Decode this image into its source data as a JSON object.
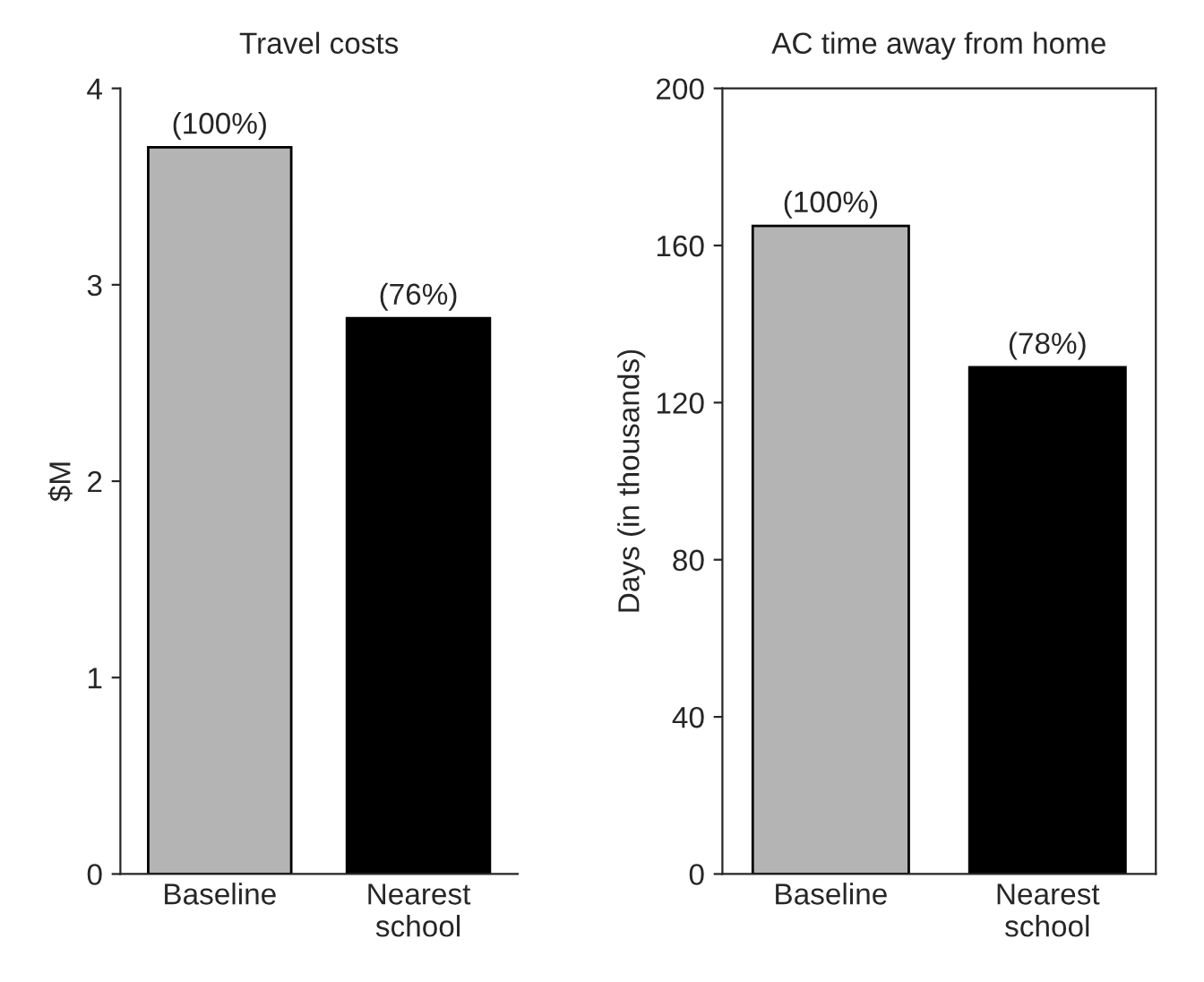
{
  "chart_data": [
    {
      "type": "bar",
      "title": "Travel costs",
      "ylabel": "$M",
      "categories": [
        "Baseline",
        "Nearest\nschool"
      ],
      "values": [
        3.7,
        2.83
      ],
      "colors": [
        "#b4b4b4",
        "#000000"
      ],
      "annotations": [
        {
          "text": "(100%)",
          "x": "Baseline",
          "y": 3.7
        },
        {
          "text": "(76%)",
          "x": "Nearest\nschool",
          "y": 2.83
        }
      ],
      "ylim": [
        0,
        4
      ],
      "yticks": [
        0,
        1,
        2,
        3,
        4
      ],
      "grid": false,
      "legend": false
    },
    {
      "type": "bar",
      "title": "AC time away from home",
      "ylabel": "Days (in thousands)",
      "categories": [
        "Baseline",
        "Nearest\nschool"
      ],
      "values": [
        165,
        129
      ],
      "colors": [
        "#b4b4b4",
        "#000000"
      ],
      "annotations": [
        {
          "text": "(100%)",
          "x": "Baseline",
          "y": 165
        },
        {
          "text": "(78%)",
          "x": "Nearest\nschool",
          "y": 129
        }
      ],
      "ylim": [
        0,
        200
      ],
      "yticks": [
        0,
        40,
        80,
        120,
        160,
        200
      ],
      "grid": false,
      "legend": false
    }
  ]
}
